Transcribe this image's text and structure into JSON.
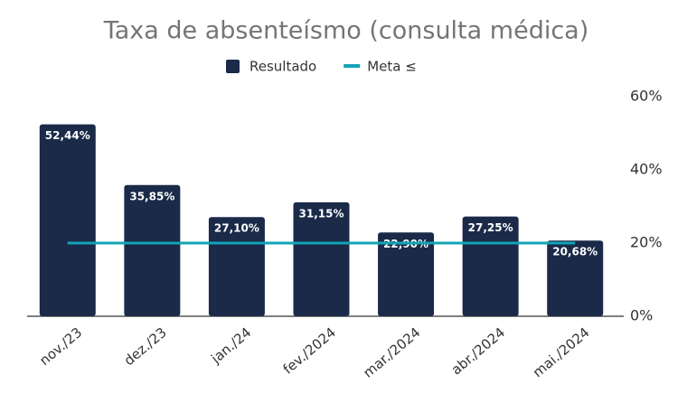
{
  "chart_data": {
    "type": "bar",
    "title": "Taxa de absenteísmo (consulta médica)",
    "categories": [
      "nov./23",
      "dez./23",
      "jan./24",
      "fev./2024",
      "mar./2024",
      "abr./2024",
      "mai./2024"
    ],
    "series": [
      {
        "name": "Resultado",
        "color": "#1a2a48",
        "values": [
          52.44,
          35.85,
          27.1,
          31.15,
          22.9,
          27.25,
          20.68
        ],
        "value_labels": [
          "52,44%",
          "35,85%",
          "27,10%",
          "31,15%",
          "22,90%",
          "27,25%",
          "20,68%"
        ]
      },
      {
        "name": "Meta ≤",
        "type": "line",
        "color": "#12a4b6",
        "values": [
          20,
          20,
          20,
          20,
          20,
          20,
          20
        ]
      }
    ],
    "ylim": [
      0,
      60
    ],
    "yticks": [
      {
        "value": 0,
        "label": "0%"
      },
      {
        "value": 20,
        "label": "20%"
      },
      {
        "value": 40,
        "label": "40%"
      },
      {
        "value": 60,
        "label": "60%"
      }
    ],
    "yaxis_side": "right",
    "grid": false,
    "legend": "top"
  }
}
